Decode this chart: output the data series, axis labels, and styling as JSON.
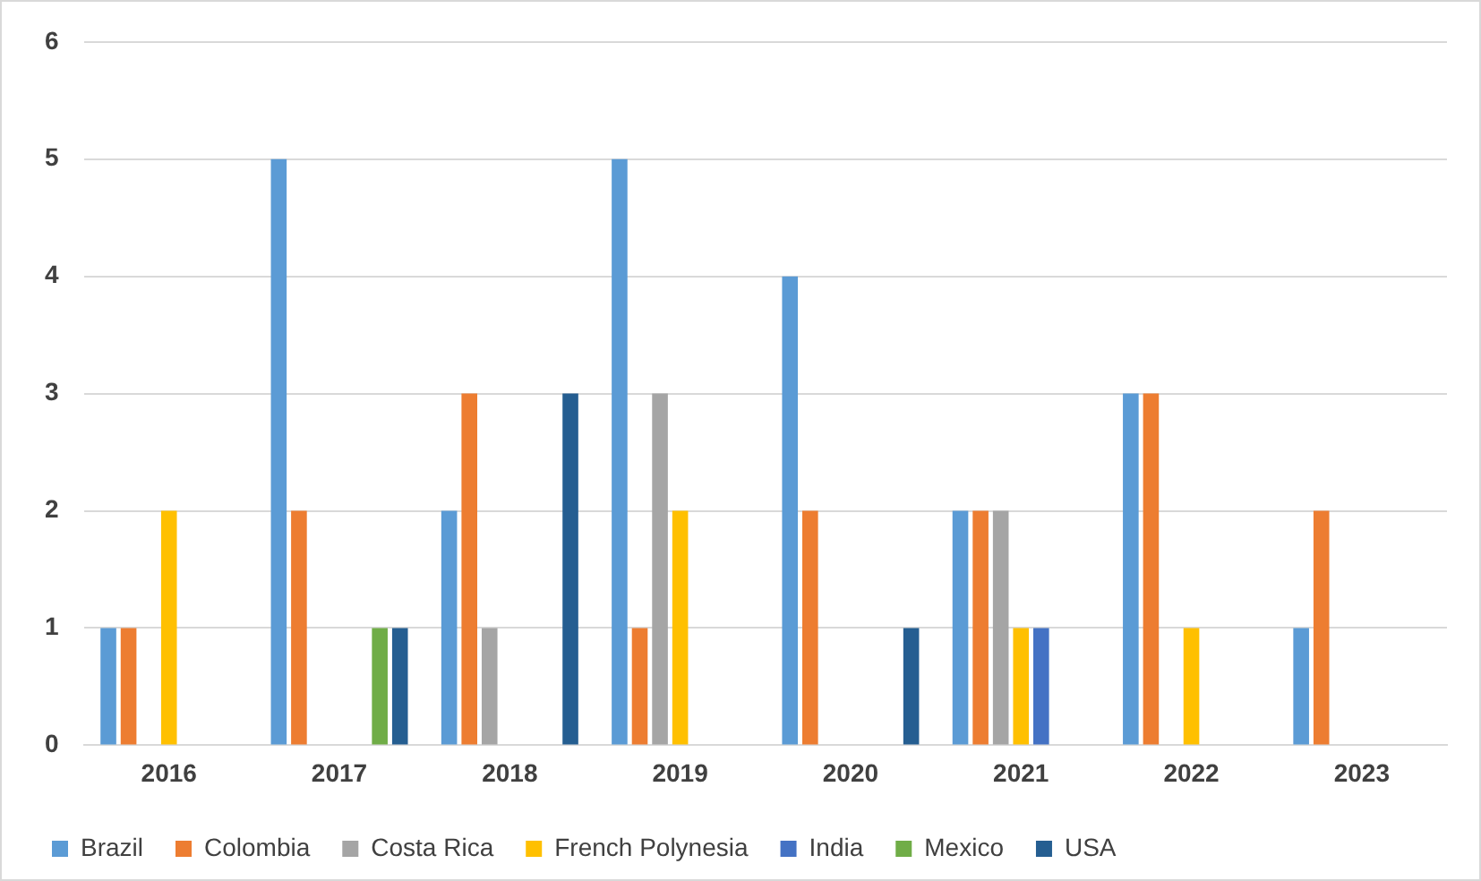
{
  "chart_data": {
    "type": "bar",
    "categories": [
      "2016",
      "2017",
      "2018",
      "2019",
      "2020",
      "2021",
      "2022",
      "2023"
    ],
    "series": [
      {
        "name": "Brazil",
        "color": "#5b9bd5",
        "values": [
          1,
          5,
          2,
          5,
          4,
          2,
          3,
          1
        ]
      },
      {
        "name": "Colombia",
        "color": "#ed7d31",
        "values": [
          1,
          2,
          3,
          1,
          2,
          2,
          3,
          2
        ]
      },
      {
        "name": "Costa Rica",
        "color": "#a5a5a5",
        "values": [
          0,
          0,
          1,
          3,
          0,
          2,
          0,
          0
        ]
      },
      {
        "name": "French Polynesia",
        "color": "#ffc000",
        "values": [
          2,
          0,
          0,
          2,
          0,
          1,
          1,
          0
        ]
      },
      {
        "name": "India",
        "color": "#4472c4",
        "values": [
          0,
          0,
          0,
          0,
          0,
          1,
          0,
          0
        ]
      },
      {
        "name": "Mexico",
        "color": "#70ad47",
        "values": [
          0,
          1,
          0,
          0,
          0,
          0,
          0,
          0
        ]
      },
      {
        "name": "USA",
        "color": "#255e91",
        "values": [
          0,
          1,
          3,
          0,
          1,
          0,
          0,
          0
        ]
      }
    ],
    "ylim": [
      0,
      6
    ],
    "yticks": [
      0,
      1,
      2,
      3,
      4,
      5,
      6
    ],
    "grid": "y",
    "legend": "bottom"
  }
}
